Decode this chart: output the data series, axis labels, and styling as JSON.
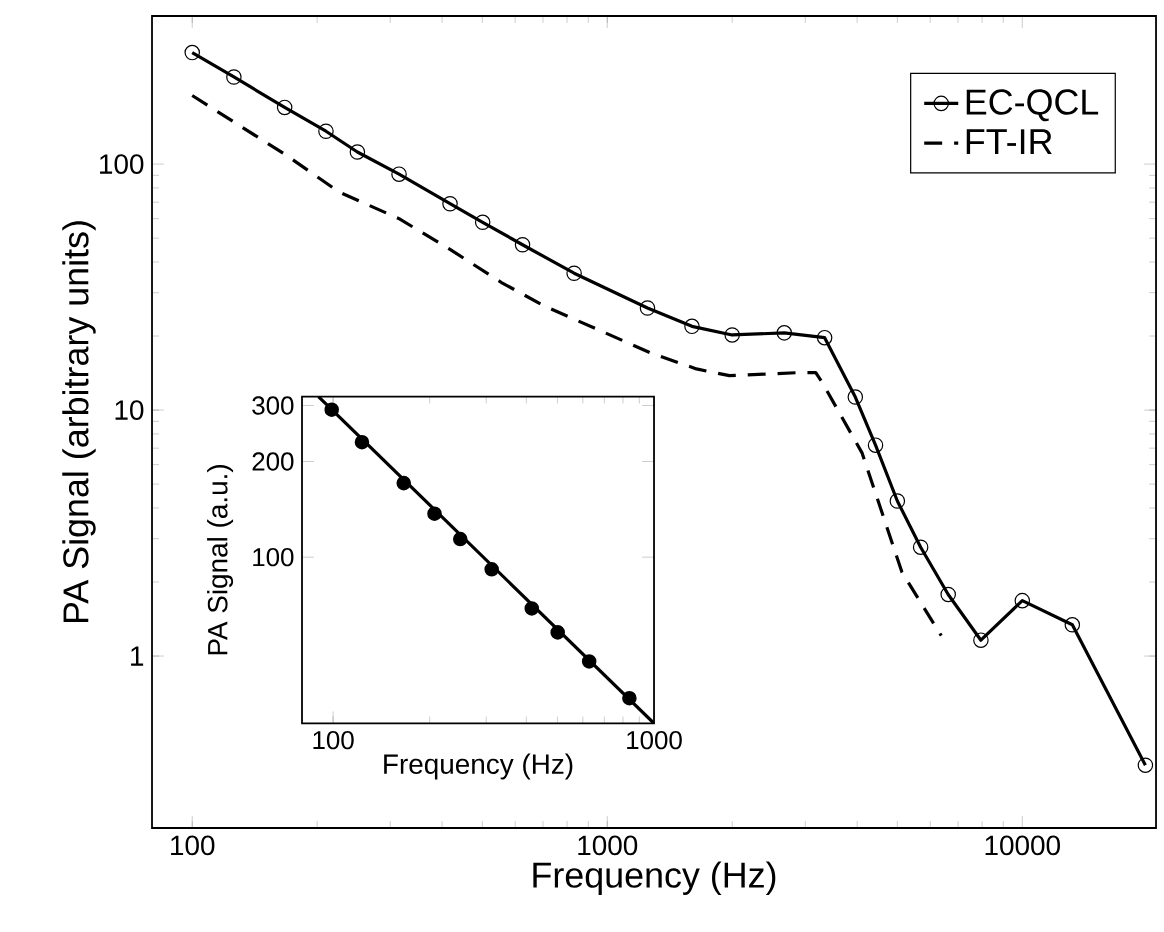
{
  "chart_data": [
    {
      "type": "line",
      "xlabel": "Frequency (Hz)",
      "ylabel": "PA Signal (arbitrary units)",
      "log": "xy",
      "xlim": [
        80,
        21000
      ],
      "ylim": [
        0.2,
        400
      ],
      "xticks": [
        100,
        1000,
        10000
      ],
      "yticks": [
        1,
        10,
        100
      ],
      "legend": "top right",
      "series": [
        {
          "name": "EC-QCL",
          "color": "#000000",
          "marker": "circle",
          "line_style": "solid",
          "x": [
            100,
            126,
            167,
            210,
            250,
            315,
            418,
            501,
            625,
            832,
            1250,
            1600,
            2000,
            2670,
            3340,
            3960,
            4430,
            5000,
            5690,
            6630,
            7950,
            10000,
            13200,
            19800
          ],
          "values": [
            284,
            226,
            170,
            136,
            112,
            91,
            69,
            58,
            47,
            36,
            26,
            21.9,
            20.2,
            20.6,
            19.7,
            11.3,
            7.2,
            4.27,
            2.77,
            1.78,
            1.16,
            1.68,
            1.34,
            0.36
          ]
        },
        {
          "name": "FT-IR",
          "color": "#000000",
          "marker": "none",
          "line_style": "dashed",
          "x": [
            100,
            168,
            226,
            315,
            418,
            556,
            705,
            1270,
            1640,
            1970,
            2900,
            3180,
            3300,
            4110,
            5130,
            6380
          ],
          "values": [
            190,
            109,
            77,
            60,
            45,
            33,
            26.5,
            17.1,
            14.7,
            13.8,
            14.2,
            14.2,
            12.9,
            6.7,
            2.19,
            1.21
          ]
        }
      ]
    },
    {
      "type": "scatter",
      "xlabel": "Frequency (Hz)",
      "ylabel": "PA Signal (a.u.)",
      "log": "xy",
      "xlim": [
        80,
        1000
      ],
      "ylim": [
        30,
        320
      ],
      "xticks": [
        100,
        1000
      ],
      "yticks": [
        100,
        200,
        300
      ],
      "series": [
        {
          "color": "#000000",
          "marker": "circle",
          "x": [
            99,
            123,
            166,
            207,
            249,
            312,
            416,
            501,
            628,
            838
          ],
          "values": [
            291,
            230,
            171,
            137,
            114,
            91.6,
            69,
            58,
            47,
            36
          ]
        },
        {
          "type": "line",
          "color": "#000000",
          "marker": "none",
          "line_style": "solid",
          "x": [
            90,
            1000
          ],
          "values": [
            320,
            30
          ]
        }
      ]
    }
  ]
}
